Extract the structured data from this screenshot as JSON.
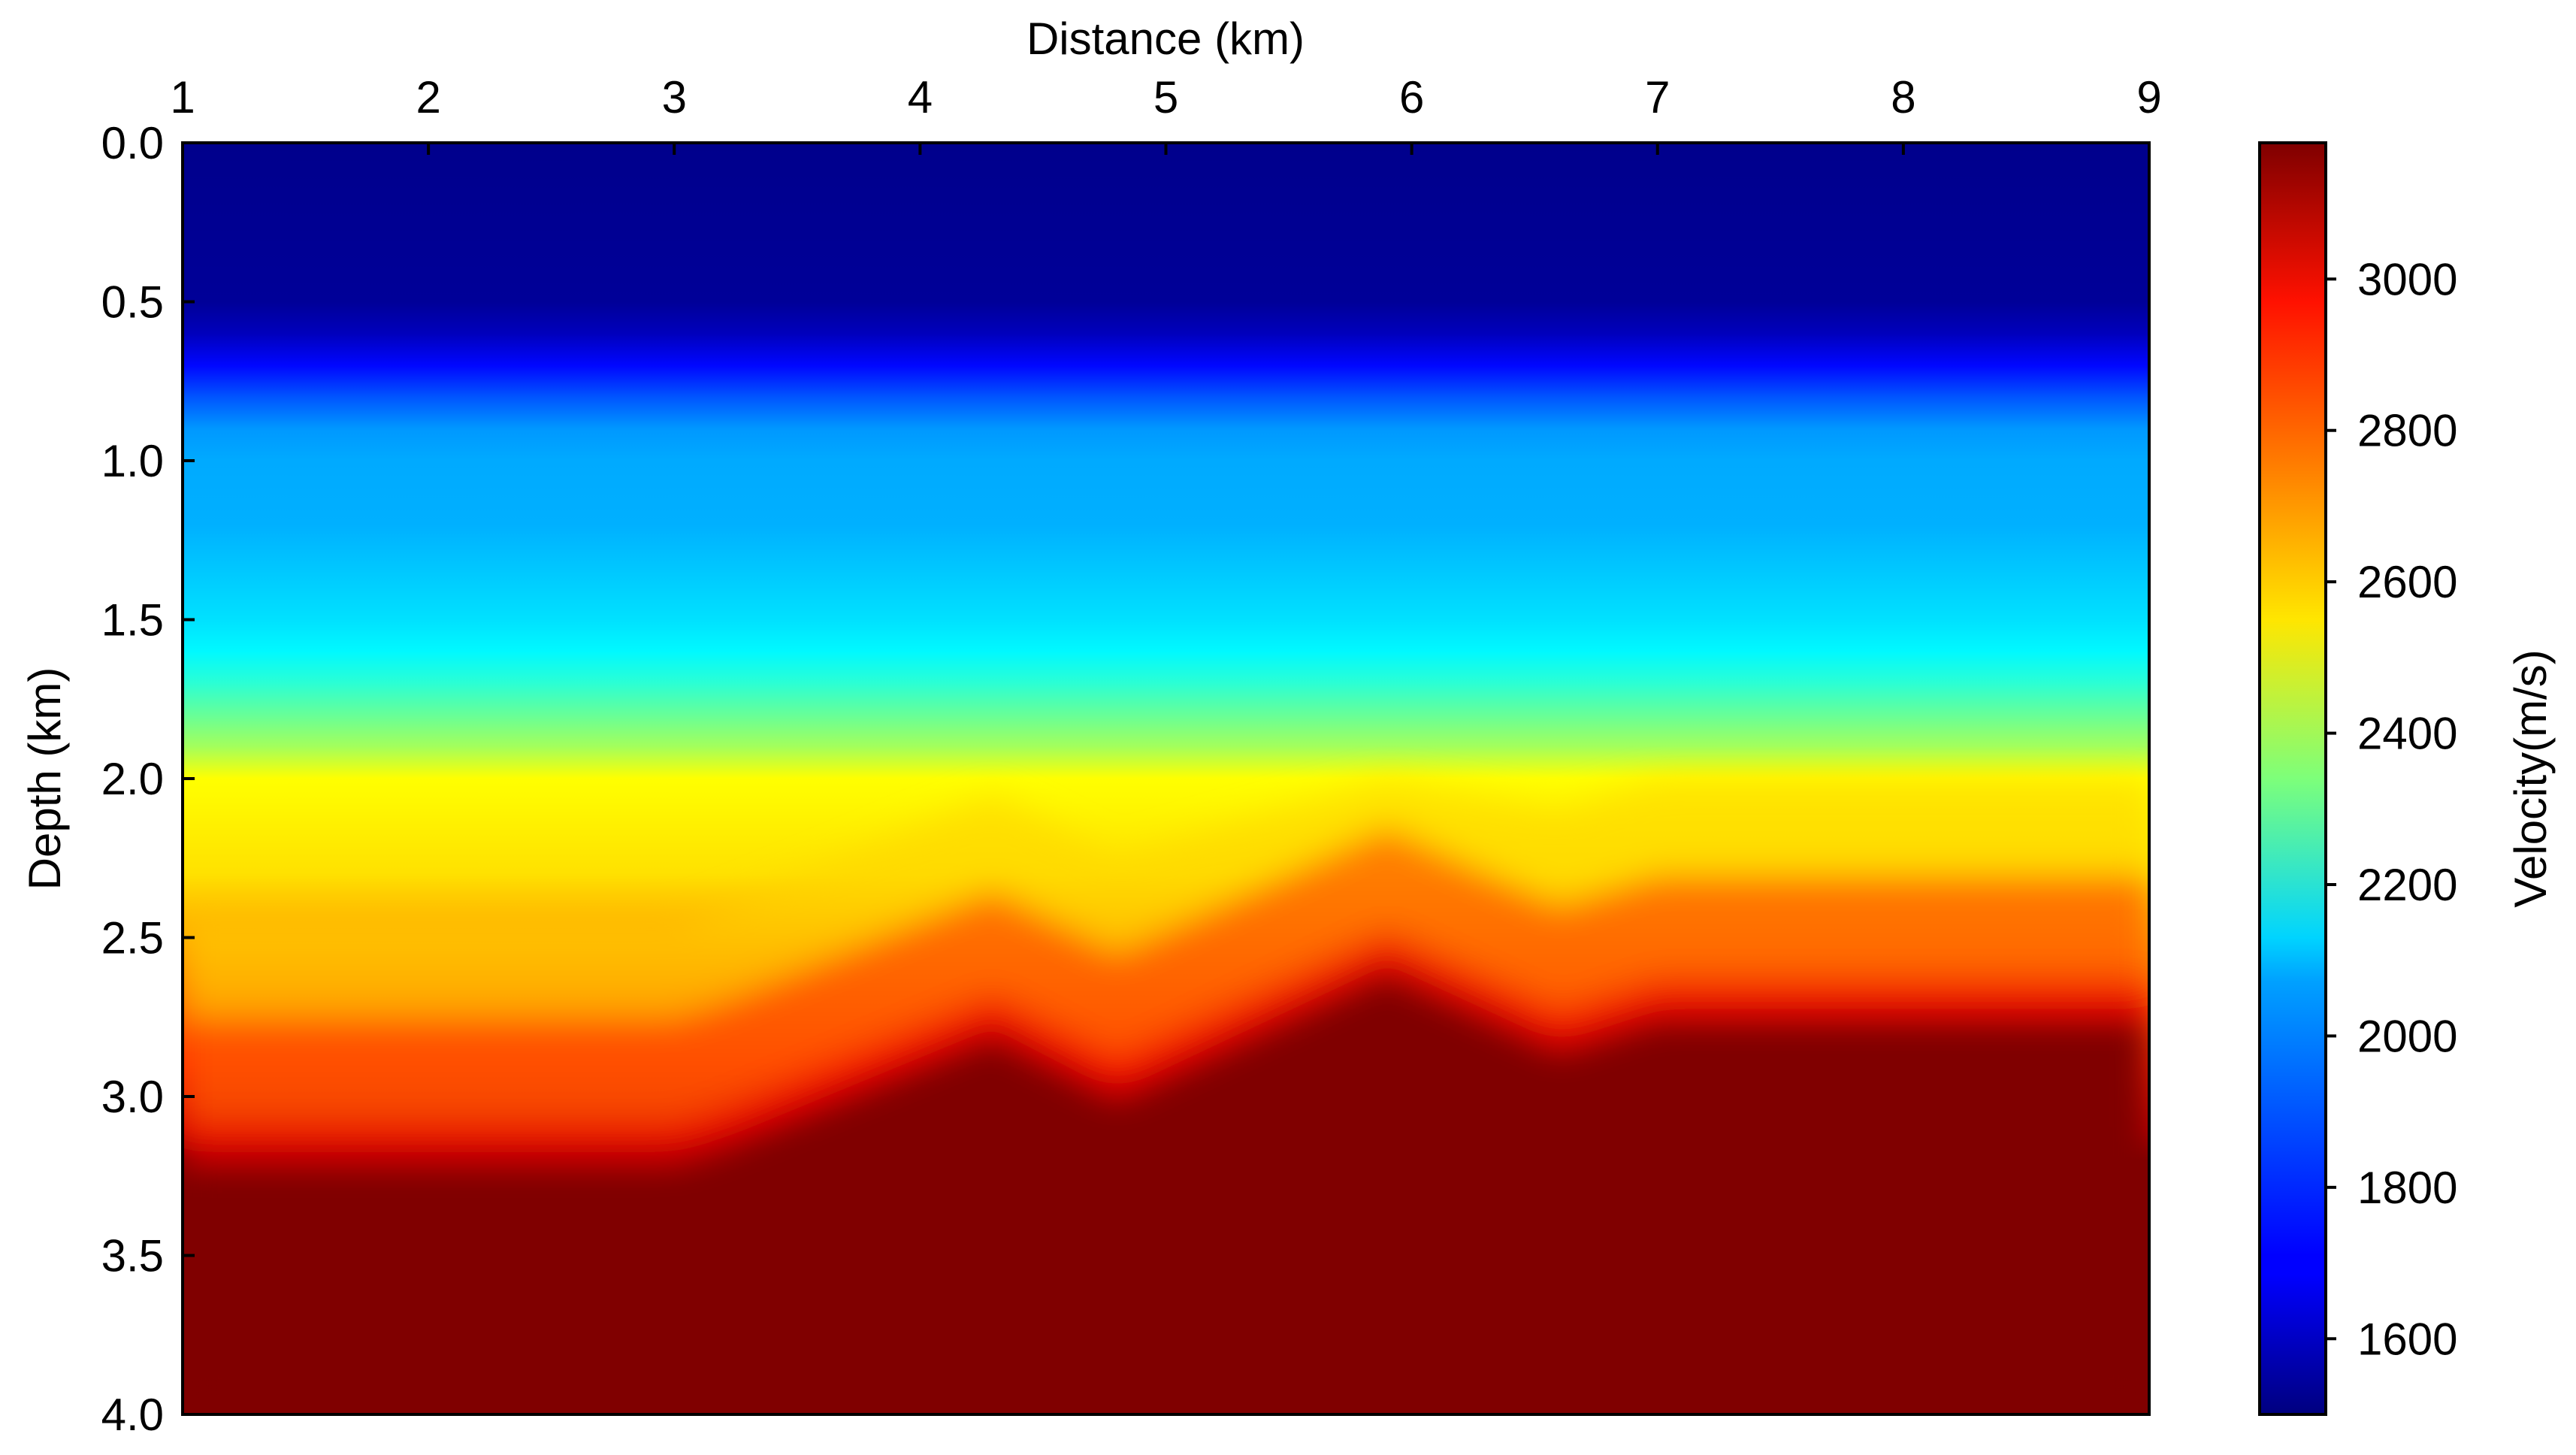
{
  "chart_data": {
    "type": "heatmap",
    "title": "",
    "xlabel": "Distance (km)",
    "ylabel": "Depth (km)",
    "xlim": [
      1,
      9
    ],
    "ylim": [
      0,
      4.0
    ],
    "y_inverted": true,
    "x_axis_position": "top",
    "x_ticks": [
      "1",
      "2",
      "3",
      "4",
      "5",
      "6",
      "7",
      "8",
      "9"
    ],
    "y_ticks": [
      "0.0",
      "0.5",
      "1.0",
      "1.5",
      "2.0",
      "2.5",
      "3.0",
      "3.5",
      "4.0"
    ],
    "colormap": "jet",
    "colorbar": {
      "label": "Velocity(m/s)",
      "range": [
        1500,
        3180
      ],
      "ticks": [
        "1600",
        "1800",
        "2000",
        "2200",
        "2400",
        "2600",
        "2800",
        "3000"
      ]
    },
    "velocity_profile_depth_km": [
      0.0,
      0.5,
      0.6,
      0.7,
      0.8,
      0.9,
      1.0,
      1.2,
      1.5,
      1.6,
      1.7,
      1.8,
      1.9,
      2.0,
      2.3,
      2.5,
      2.7,
      2.9,
      3.1,
      3.2,
      4.0
    ],
    "velocity_profile_ms": [
      1520,
      1540,
      1600,
      1720,
      1850,
      1960,
      1990,
      2000,
      2080,
      2120,
      2200,
      2300,
      2400,
      2550,
      2600,
      2700,
      2800,
      2900,
      3050,
      3180,
      3180
    ],
    "basement_top_x_km": [
      1.0,
      3.0,
      3.2,
      4.3,
      4.8,
      5.9,
      6.6,
      7.0,
      9.0
    ],
    "basement_top_depth_km": [
      3.2,
      3.2,
      3.15,
      2.8,
      3.0,
      2.6,
      2.85,
      2.75,
      2.75
    ]
  }
}
